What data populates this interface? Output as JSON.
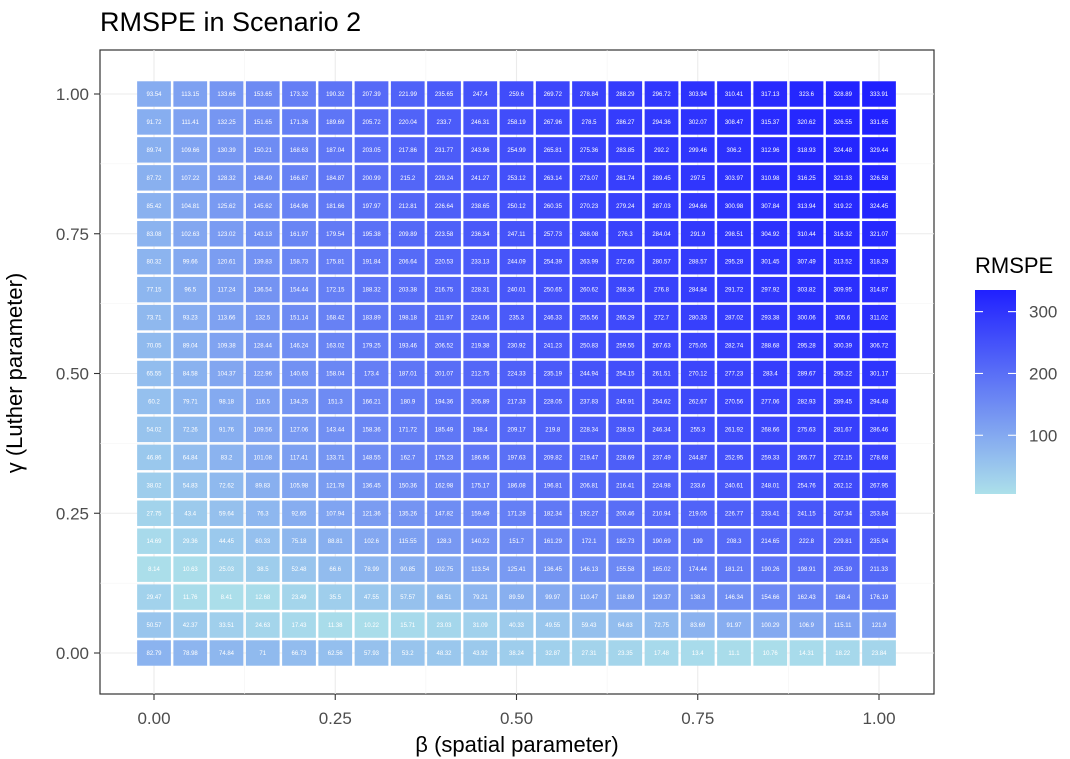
{
  "chart_data": {
    "type": "heatmap",
    "title": "RMSPE in Scenario 2",
    "xlabel": "β (spatial parameter)",
    "ylabel": "γ (Luther parameter)",
    "x": [
      0,
      0.05,
      0.1,
      0.15,
      0.2,
      0.25,
      0.3,
      0.35,
      0.4,
      0.45,
      0.5,
      0.55,
      0.6,
      0.65,
      0.7,
      0.75,
      0.8,
      0.85,
      0.9,
      0.95,
      1.0
    ],
    "y": [
      1.0,
      0.95,
      0.9,
      0.85,
      0.8,
      0.75,
      0.7,
      0.65,
      0.6,
      0.55,
      0.5,
      0.45,
      0.4,
      0.35,
      0.3,
      0.25,
      0.2,
      0.15,
      0.1,
      0.05,
      0.0
    ],
    "xlim": [
      0,
      1
    ],
    "ylim": [
      0,
      1
    ],
    "x_ticks": [
      0,
      0.25,
      0.5,
      0.75,
      1.0
    ],
    "y_ticks": [
      0,
      0.25,
      0.5,
      0.75,
      1.0
    ],
    "x_tick_labels": [
      "0.00",
      "0.25",
      "0.50",
      "0.75",
      "1.00"
    ],
    "y_tick_labels": [
      "0.00",
      "0.25",
      "0.50",
      "0.75",
      "1.00"
    ],
    "legend": {
      "title": "RMSPE",
      "position": "right",
      "ticks": [
        100,
        200,
        300
      ],
      "tick_labels": [
        "100",
        "200",
        "300"
      ],
      "min": 5,
      "max": 335,
      "low_color": "#ace0ea",
      "high_color": "#2020ff"
    },
    "grid": true,
    "values": [
      [
        93.54,
        113.15,
        133.66,
        153.65,
        173.32,
        190.32,
        207.39,
        221.99,
        235.65,
        247.4,
        259.6,
        269.72,
        278.84,
        288.29,
        296.72,
        303.94,
        310.41,
        317.13,
        323.6,
        328.89,
        333.91
      ],
      [
        91.72,
        111.41,
        132.25,
        151.65,
        171.36,
        189.69,
        205.72,
        220.04,
        233.7,
        246.31,
        258.19,
        267.96,
        278.5,
        286.27,
        294.36,
        302.07,
        308.47,
        315.37,
        320.62,
        326.55,
        331.65
      ],
      [
        89.74,
        109.66,
        130.39,
        150.21,
        168.63,
        187.04,
        203.05,
        217.86,
        231.77,
        243.96,
        254.99,
        265.81,
        275.36,
        283.85,
        292.2,
        299.46,
        306.2,
        312.96,
        318.93,
        324.48,
        329.44
      ],
      [
        87.72,
        107.22,
        128.32,
        148.49,
        166.87,
        184.87,
        200.99,
        215.2,
        229.24,
        241.27,
        253.12,
        263.14,
        273.07,
        281.74,
        289.45,
        297.5,
        303.97,
        310.98,
        316.25,
        321.33,
        326.58
      ],
      [
        85.42,
        104.81,
        125.62,
        145.62,
        164.96,
        181.66,
        197.97,
        212.81,
        226.64,
        238.65,
        250.12,
        260.35,
        270.23,
        279.24,
        287.03,
        294.66,
        300.98,
        307.84,
        313.94,
        319.22,
        324.45
      ],
      [
        83.08,
        102.63,
        123.02,
        143.13,
        161.97,
        179.54,
        195.38,
        209.89,
        223.58,
        236.34,
        247.11,
        257.73,
        268.08,
        276.3,
        284.04,
        291.9,
        298.51,
        304.92,
        310.44,
        316.32,
        321.07
      ],
      [
        80.32,
        99.66,
        120.61,
        139.83,
        158.73,
        175.81,
        191.84,
        206.64,
        220.53,
        233.13,
        244.09,
        254.39,
        263.99,
        272.65,
        280.57,
        288.57,
        295.28,
        301.45,
        307.49,
        313.52,
        318.29
      ],
      [
        77.15,
        96.5,
        117.24,
        136.54,
        154.44,
        172.15,
        188.32,
        203.38,
        216.75,
        228.31,
        240.01,
        250.65,
        260.62,
        268.36,
        276.8,
        284.84,
        291.72,
        297.92,
        303.82,
        309.95,
        314.87
      ],
      [
        73.71,
        93.23,
        113.66,
        132.5,
        151.14,
        168.42,
        183.89,
        198.18,
        211.97,
        224.06,
        235.3,
        246.33,
        255.56,
        265.29,
        272.7,
        280.33,
        287.02,
        293.38,
        300.06,
        305.6,
        311.02
      ],
      [
        70.05,
        89.04,
        109.38,
        128.44,
        146.24,
        163.02,
        179.25,
        193.46,
        206.52,
        219.38,
        230.92,
        241.23,
        250.83,
        259.55,
        267.63,
        275.05,
        282.74,
        288.68,
        295.28,
        300.39,
        306.72
      ],
      [
        65.55,
        84.58,
        104.37,
        122.96,
        140.63,
        158.04,
        173.4,
        187.01,
        201.07,
        212.75,
        224.33,
        235.19,
        244.94,
        254.15,
        261.51,
        270.12,
        277.23,
        283.4,
        289.67,
        295.22,
        301.17
      ],
      [
        60.2,
        79.71,
        98.18,
        116.5,
        134.25,
        151.3,
        166.21,
        180.9,
        194.36,
        205.89,
        217.33,
        228.05,
        237.83,
        245.91,
        254.62,
        262.67,
        270.56,
        277.06,
        282.93,
        289.45,
        294.48
      ],
      [
        54.02,
        72.26,
        91.76,
        109.56,
        127.06,
        143.44,
        158.36,
        171.72,
        185.49,
        198.4,
        209.17,
        219.8,
        228.34,
        238.53,
        246.34,
        255.3,
        261.92,
        268.66,
        275.63,
        281.67,
        286.46
      ],
      [
        46.86,
        64.84,
        83.2,
        101.08,
        117.41,
        133.71,
        148.55,
        162.7,
        175.23,
        186.96,
        197.63,
        209.82,
        219.47,
        228.69,
        237.49,
        244.87,
        252.95,
        259.33,
        265.77,
        272.15,
        278.68
      ],
      [
        38.02,
        54.83,
        72.62,
        89.83,
        105.98,
        121.78,
        136.45,
        150.36,
        162.98,
        175.17,
        186.08,
        196.81,
        206.81,
        216.41,
        224.98,
        233.6,
        240.61,
        248.01,
        254.76,
        262.12,
        267.95
      ],
      [
        27.75,
        43.4,
        59.64,
        76.3,
        92.65,
        107.94,
        121.36,
        135.26,
        147.82,
        159.49,
        171.28,
        182.34,
        192.27,
        200.46,
        210.94,
        219.05,
        226.77,
        233.41,
        241.15,
        247.34,
        253.84
      ],
      [
        14.69,
        29.36,
        44.45,
        60.33,
        75.18,
        88.81,
        102.6,
        115.55,
        128.3,
        140.22,
        151.7,
        161.29,
        172.1,
        182.73,
        190.69,
        199,
        208.3,
        214.65,
        222.8,
        229.81,
        235.94
      ],
      [
        8.14,
        10.63,
        25.03,
        38.5,
        52.48,
        66.6,
        78.99,
        90.85,
        102.75,
        113.54,
        125.41,
        136.45,
        146.13,
        155.58,
        165.02,
        174.44,
        181.21,
        190.26,
        198.91,
        205.39,
        211.33
      ],
      [
        29.47,
        11.76,
        8.41,
        12.68,
        23.49,
        35.5,
        47.55,
        57.57,
        68.51,
        79.21,
        89.59,
        99.97,
        110.47,
        118.89,
        129.37,
        138.3,
        146.34,
        154.66,
        162.43,
        168.4,
        176.19
      ],
      [
        50.57,
        42.37,
        33.51,
        24.63,
        17.43,
        11.38,
        10.22,
        15.71,
        23.03,
        31.09,
        40.33,
        49.55,
        59.43,
        64.63,
        72.75,
        83.69,
        91.97,
        100.29,
        106.9,
        115.11,
        121.9
      ],
      [
        82.79,
        78.98,
        74.84,
        71,
        66.73,
        62.56,
        57.93,
        53.2,
        48.32,
        43.92,
        38.24,
        32.87,
        27.31,
        23.35,
        17.48,
        13.4,
        11.1,
        10.76,
        14.31,
        18.22,
        23.84
      ]
    ]
  }
}
